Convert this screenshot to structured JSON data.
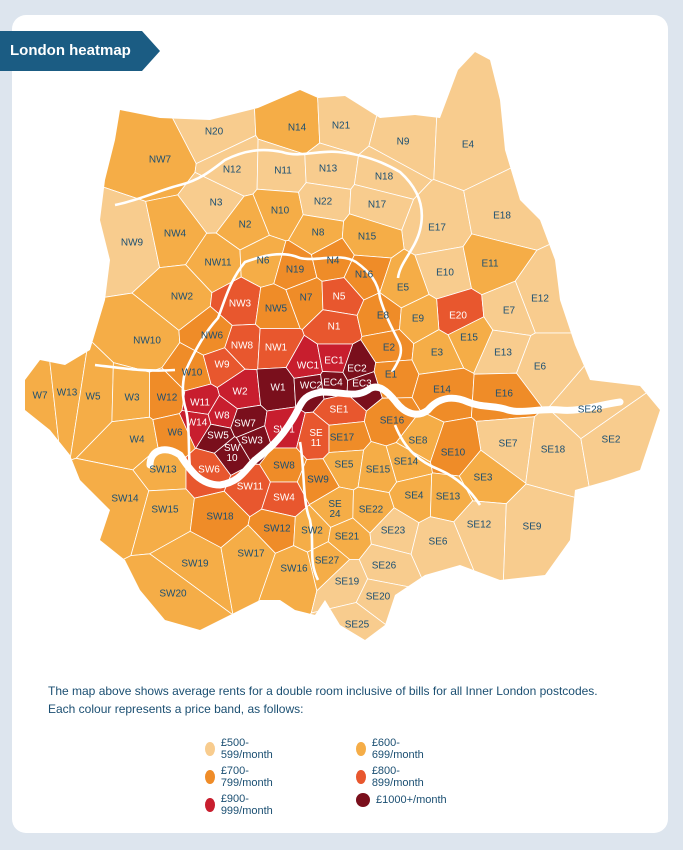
{
  "header": {
    "title": "London heatmap"
  },
  "bands": [
    {
      "key": "b500",
      "label": "£500-599/month",
      "color": "#f8cc8e"
    },
    {
      "key": "b600",
      "label": "£600-699/month",
      "color": "#f5ad47"
    },
    {
      "key": "b700",
      "label": "£700-799/month",
      "color": "#ef8c28"
    },
    {
      "key": "b800",
      "label": "£800-899/month",
      "color": "#e8572e"
    },
    {
      "key": "b900",
      "label": "£900-999/month",
      "color": "#c81e2e"
    },
    {
      "key": "b1000",
      "label": "£1000+/month",
      "color": "#7a0f1c"
    }
  ],
  "description": {
    "line1": "The map above shows average rents for a double room inclusive of bills for all Inner London postcodes.",
    "line2": "Each colour represents a price band, as follows:"
  },
  "postcodes": [
    {
      "code": "N20",
      "band": "b500"
    },
    {
      "code": "N14",
      "band": "b600"
    },
    {
      "code": "N21",
      "band": "b500"
    },
    {
      "code": "N9",
      "band": "b500"
    },
    {
      "code": "E4",
      "band": "b500"
    },
    {
      "code": "NW7",
      "band": "b600"
    },
    {
      "code": "N12",
      "band": "b500"
    },
    {
      "code": "N11",
      "band": "b500"
    },
    {
      "code": "N13",
      "band": "b500"
    },
    {
      "code": "N18",
      "band": "b500"
    },
    {
      "code": "N3",
      "band": "b500"
    },
    {
      "code": "N10",
      "band": "b600"
    },
    {
      "code": "N22",
      "band": "b500"
    },
    {
      "code": "N17",
      "band": "b500"
    },
    {
      "code": "E17",
      "band": "b500"
    },
    {
      "code": "E18",
      "band": "b500"
    },
    {
      "code": "NW9",
      "band": "b500"
    },
    {
      "code": "NW4",
      "band": "b600"
    },
    {
      "code": "N2",
      "band": "b600"
    },
    {
      "code": "N8",
      "band": "b600"
    },
    {
      "code": "N15",
      "band": "b600"
    },
    {
      "code": "NW11",
      "band": "b600"
    },
    {
      "code": "N6",
      "band": "b600"
    },
    {
      "code": "N19",
      "band": "b700"
    },
    {
      "code": "N4",
      "band": "b700"
    },
    {
      "code": "N16",
      "band": "b700"
    },
    {
      "code": "E10",
      "band": "b500"
    },
    {
      "code": "E11",
      "band": "b600"
    },
    {
      "code": "NW2",
      "band": "b600"
    },
    {
      "code": "NW3",
      "band": "b800"
    },
    {
      "code": "NW5",
      "band": "b700"
    },
    {
      "code": "N7",
      "band": "b700"
    },
    {
      "code": "N5",
      "band": "b800"
    },
    {
      "code": "E5",
      "band": "b600"
    },
    {
      "code": "E20",
      "band": "b800"
    },
    {
      "code": "E12",
      "band": "b500"
    },
    {
      "code": "E7",
      "band": "b500"
    },
    {
      "code": "NW10",
      "band": "b600"
    },
    {
      "code": "NW6",
      "band": "b700"
    },
    {
      "code": "NW8",
      "band": "b800"
    },
    {
      "code": "N1",
      "band": "b800"
    },
    {
      "code": "E8",
      "band": "b700"
    },
    {
      "code": "E9",
      "band": "b600"
    },
    {
      "code": "E15",
      "band": "b600"
    },
    {
      "code": "NW1",
      "band": "b800"
    },
    {
      "code": "E2",
      "band": "b700"
    },
    {
      "code": "E3",
      "band": "b600"
    },
    {
      "code": "E13",
      "band": "b500"
    },
    {
      "code": "E6",
      "band": "b500"
    },
    {
      "code": "W10",
      "band": "b700"
    },
    {
      "code": "W9",
      "band": "b800"
    },
    {
      "code": "WC1",
      "band": "b900"
    },
    {
      "code": "EC1",
      "band": "b900"
    },
    {
      "code": "EC2",
      "band": "b1000"
    },
    {
      "code": "E1",
      "band": "b700"
    },
    {
      "code": "W7",
      "band": "b600"
    },
    {
      "code": "W13",
      "band": "b600"
    },
    {
      "code": "W5",
      "band": "b600"
    },
    {
      "code": "W3",
      "band": "b600"
    },
    {
      "code": "W12",
      "band": "b700"
    },
    {
      "code": "W2",
      "band": "b900"
    },
    {
      "code": "W1",
      "band": "b1000"
    },
    {
      "code": "WC2",
      "band": "b1000"
    },
    {
      "code": "EC4",
      "band": "b1000"
    },
    {
      "code": "EC3",
      "band": "b1000"
    },
    {
      "code": "E14",
      "band": "b700"
    },
    {
      "code": "E16",
      "band": "b700"
    },
    {
      "code": "W11",
      "band": "b900"
    },
    {
      "code": "W8",
      "band": "b900"
    },
    {
      "code": "SE1",
      "band": "b800"
    },
    {
      "code": "SE28",
      "band": "b500"
    },
    {
      "code": "W14",
      "band": "b900"
    },
    {
      "code": "SW7",
      "band": "b1000"
    },
    {
      "code": "SE16",
      "band": "b700"
    },
    {
      "code": "W4",
      "band": "b600"
    },
    {
      "code": "W6",
      "band": "b700"
    },
    {
      "code": "SW5",
      "band": "b1000"
    },
    {
      "code": "SW3",
      "band": "b1000"
    },
    {
      "code": "SW1",
      "band": "b900"
    },
    {
      "code": "SE11",
      "band": "b800"
    },
    {
      "code": "SE17",
      "band": "b700"
    },
    {
      "code": "SE8",
      "band": "b600"
    },
    {
      "code": "SE7",
      "band": "b500"
    },
    {
      "code": "SE18",
      "band": "b500"
    },
    {
      "code": "SE2",
      "band": "b500"
    },
    {
      "code": "SW10",
      "band": "b1000"
    },
    {
      "code": "SE10",
      "band": "b700"
    },
    {
      "code": "SW13",
      "band": "b600"
    },
    {
      "code": "SW6",
      "band": "b800"
    },
    {
      "code": "SW8",
      "band": "b700"
    },
    {
      "code": "SE5",
      "band": "b600"
    },
    {
      "code": "SE15",
      "band": "b600"
    },
    {
      "code": "SE14",
      "band": "b600"
    },
    {
      "code": "SW9",
      "band": "b700"
    },
    {
      "code": "SE3",
      "band": "b600"
    },
    {
      "code": "SW14",
      "band": "b600"
    },
    {
      "code": "SW11",
      "band": "b800"
    },
    {
      "code": "SW4",
      "band": "b800"
    },
    {
      "code": "SE24",
      "band": "b600"
    },
    {
      "code": "SE22",
      "band": "b600"
    },
    {
      "code": "SE4",
      "band": "b600"
    },
    {
      "code": "SE13",
      "band": "b600"
    },
    {
      "code": "SW15",
      "band": "b600"
    },
    {
      "code": "SW18",
      "band": "b700"
    },
    {
      "code": "SW12",
      "band": "b700"
    },
    {
      "code": "SW2",
      "band": "b600"
    },
    {
      "code": "SE21",
      "band": "b600"
    },
    {
      "code": "SE23",
      "band": "b500"
    },
    {
      "code": "SE12",
      "band": "b500"
    },
    {
      "code": "SE9",
      "band": "b500"
    },
    {
      "code": "SE6",
      "band": "b500"
    },
    {
      "code": "SW19",
      "band": "b600"
    },
    {
      "code": "SW17",
      "band": "b600"
    },
    {
      "code": "SE27",
      "band": "b600"
    },
    {
      "code": "SE26",
      "band": "b500"
    },
    {
      "code": "SW16",
      "band": "b600"
    },
    {
      "code": "SE19",
      "band": "b500"
    },
    {
      "code": "SW20",
      "band": "b600"
    },
    {
      "code": "SE20",
      "band": "b500"
    },
    {
      "code": "SE25",
      "band": "b500"
    }
  ]
}
